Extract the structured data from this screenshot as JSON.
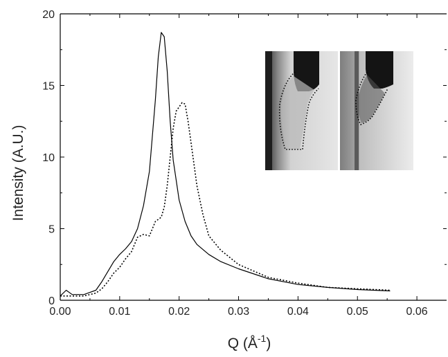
{
  "chart_data": {
    "type": "line",
    "title": "",
    "xlabel": "Q (Å",
    "xlabel_sup": "-1",
    "xlabel_close": ")",
    "ylabel": "Intensity  (A.U.)",
    "xlim": [
      0.0,
      0.065
    ],
    "ylim": [
      0,
      20
    ],
    "x_ticks": [
      "0.00",
      "0.01",
      "0.02",
      "0.03",
      "0.04",
      "0.05",
      "0.06"
    ],
    "y_ticks": [
      "0",
      "5",
      "10",
      "15",
      "20"
    ],
    "grid": false,
    "legend": "none",
    "inset": "two grayscale micrograph photos with dotted outlines (top-right)",
    "series": [
      {
        "style": "solid",
        "color": "#000000",
        "x": [
          0.0,
          0.001,
          0.002,
          0.004,
          0.006,
          0.007,
          0.008,
          0.009,
          0.01,
          0.011,
          0.012,
          0.013,
          0.014,
          0.015,
          0.0155,
          0.016,
          0.0165,
          0.017,
          0.0175,
          0.018,
          0.0185,
          0.019,
          0.02,
          0.021,
          0.022,
          0.023,
          0.025,
          0.027,
          0.03,
          0.035,
          0.04,
          0.045,
          0.05,
          0.0555
        ],
        "y": [
          0.3,
          0.7,
          0.4,
          0.4,
          0.7,
          1.3,
          2.0,
          2.7,
          3.2,
          3.6,
          4.1,
          5.0,
          6.6,
          9.0,
          11.5,
          14.0,
          17.0,
          18.7,
          18.4,
          16.0,
          12.5,
          9.8,
          7.0,
          5.5,
          4.5,
          3.9,
          3.2,
          2.7,
          2.2,
          1.5,
          1.1,
          0.9,
          0.75,
          0.65
        ]
      },
      {
        "style": "dotted",
        "color": "#000000",
        "x": [
          0.0,
          0.002,
          0.004,
          0.006,
          0.007,
          0.008,
          0.009,
          0.01,
          0.011,
          0.012,
          0.013,
          0.014,
          0.015,
          0.016,
          0.017,
          0.0175,
          0.018,
          0.0185,
          0.019,
          0.0195,
          0.02,
          0.0205,
          0.021,
          0.0215,
          0.022,
          0.023,
          0.024,
          0.025,
          0.027,
          0.03,
          0.035,
          0.04,
          0.045,
          0.05,
          0.0555
        ],
        "y": [
          0.3,
          0.3,
          0.3,
          0.5,
          0.8,
          1.3,
          1.9,
          2.3,
          2.9,
          3.4,
          4.4,
          4.6,
          4.5,
          5.5,
          5.8,
          6.5,
          8.0,
          10.0,
          12.0,
          13.2,
          13.5,
          13.8,
          13.7,
          12.5,
          11.0,
          8.0,
          6.0,
          4.5,
          3.5,
          2.5,
          1.6,
          1.2,
          0.9,
          0.8,
          0.7
        ]
      }
    ]
  }
}
